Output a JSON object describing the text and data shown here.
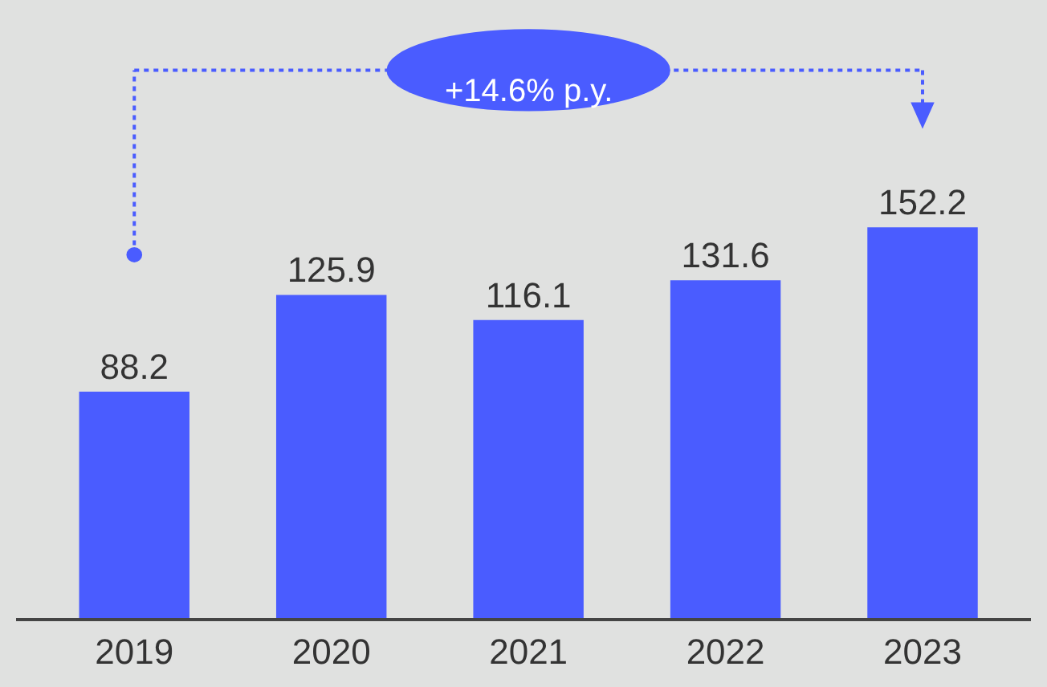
{
  "chart_data": {
    "type": "bar",
    "categories": [
      "2019",
      "2020",
      "2021",
      "2022",
      "2023"
    ],
    "values": [
      88.2,
      125.9,
      116.1,
      131.6,
      152.2
    ],
    "color": "#4a5cff",
    "data_labels": true,
    "annotations": [
      "+14.6% p.y."
    ]
  }
}
